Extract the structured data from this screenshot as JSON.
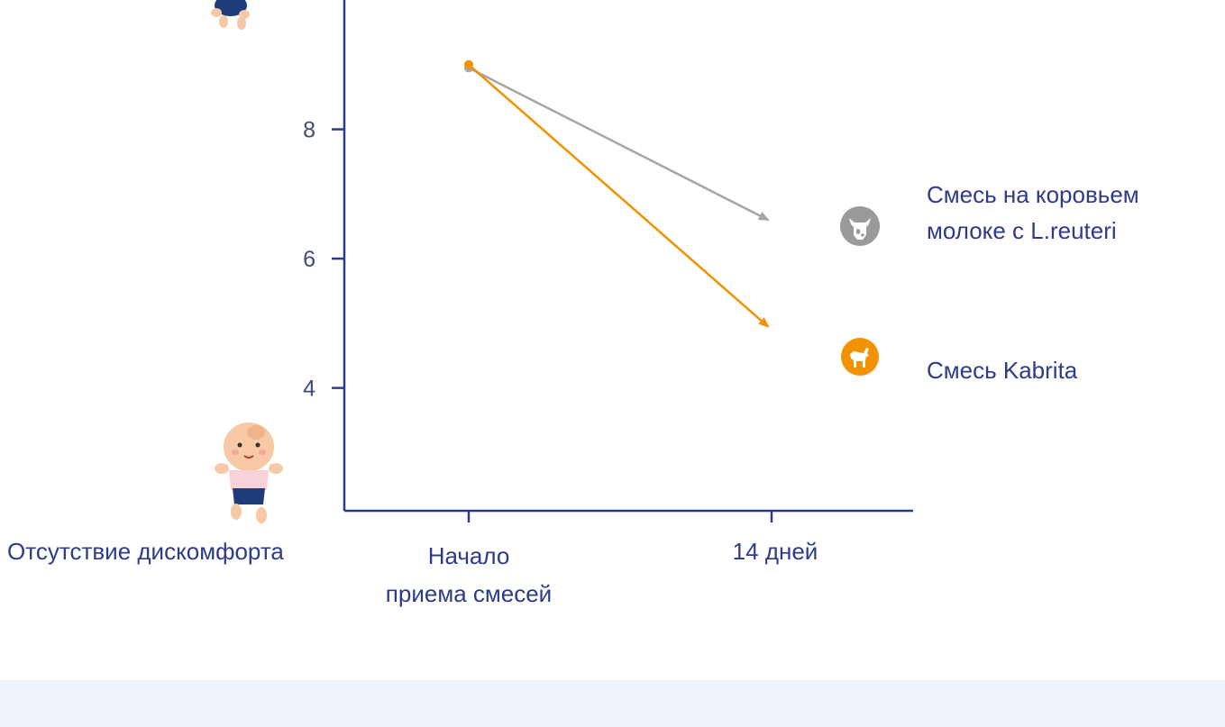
{
  "chart_data": {
    "type": "line",
    "categories": [
      "Начало\nприема смесей",
      "14 дней"
    ],
    "y_ticks": [
      4,
      6,
      8
    ],
    "ylim": [
      2.1,
      10.0
    ],
    "grid": false,
    "legend_position": "right",
    "series": [
      {
        "name": "Смесь на коровьем молоке с L.reuteri",
        "values": [
          8.95,
          6.6
        ],
        "color": "#a6a6a6"
      },
      {
        "name": "Смесь Kabrita",
        "values": [
          9.0,
          4.95
        ],
        "color": "#f39200"
      }
    ]
  },
  "labels": {
    "x_start_line1": "Начало",
    "x_start_line2": "приема смесей",
    "x_end": "14 дней",
    "y_bottom": "Отсутствие дискомфорта",
    "legend_cow_line1": "Смесь на коровьем",
    "legend_cow_line2": "молоке с L.reuteri",
    "legend_goat": "Смесь Kabrita"
  },
  "icons": {
    "legend_cow": "cow-icon",
    "legend_goat": "goat-icon",
    "baby_bottom": "baby-icon",
    "baby_top": "baby-icon"
  },
  "colors": {
    "axis": "#2e3a8c",
    "cow_series": "#a6a6a6",
    "goat_series": "#f39200",
    "bottom_band": "#eef3fb"
  }
}
